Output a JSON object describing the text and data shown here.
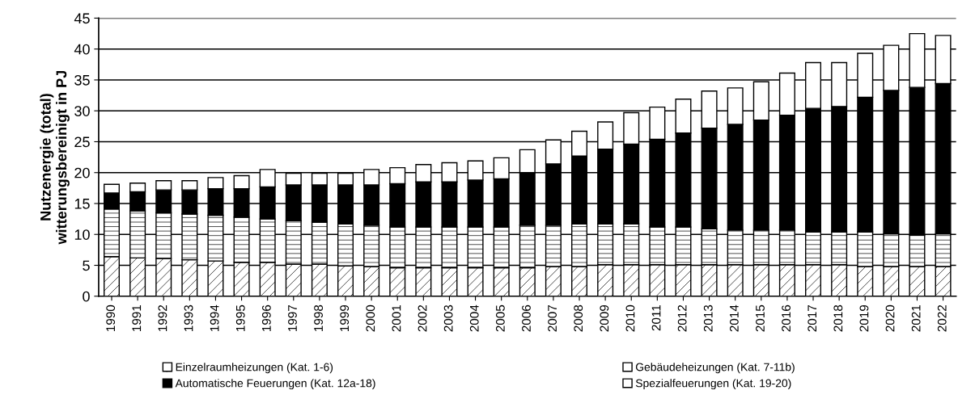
{
  "chart_data": {
    "type": "bar",
    "stacked": true,
    "ylabel": "Nutzenergie (total)\nwitterungsbereinigt in PJ",
    "categories": [
      "1990",
      "1991",
      "1992",
      "1993",
      "1994",
      "1995",
      "1996",
      "1997",
      "1998",
      "1999",
      "2000",
      "2001",
      "2002",
      "2003",
      "2004",
      "2005",
      "2006",
      "2007",
      "2008",
      "2009",
      "2010",
      "2011",
      "2012",
      "2013",
      "2014",
      "2015",
      "2016",
      "2017",
      "2018",
      "2019",
      "2020",
      "2021",
      "2022"
    ],
    "series": [
      {
        "name": "Einzelraumheizungen (Kat. 1-6)",
        "color": "#ffffff",
        "values": [
          6.4,
          6.2,
          6.1,
          5.9,
          5.7,
          5.5,
          5.5,
          5.2,
          5.2,
          4.9,
          4.8,
          4.6,
          4.6,
          4.6,
          4.6,
          4.6,
          4.6,
          4.8,
          4.8,
          5.1,
          5.1,
          5.1,
          5.1,
          5.1,
          5.1,
          5.1,
          5.1,
          5.1,
          5.1,
          4.8,
          4.8,
          4.8,
          4.8
        ]
      },
      {
        "name": "Gebäudeheizungen (Kat. 7-11b)",
        "color": "#ffffff",
        "values": [
          7.7,
          7.6,
          7.4,
          7.4,
          7.4,
          7.3,
          7.0,
          7.0,
          6.8,
          6.8,
          6.7,
          6.6,
          6.6,
          6.6,
          6.6,
          6.6,
          6.9,
          6.7,
          6.9,
          6.6,
          6.6,
          6.1,
          6.1,
          5.8,
          5.6,
          5.6,
          5.6,
          5.3,
          5.3,
          5.6,
          5.3,
          5.1,
          5.3
        ]
      },
      {
        "name": "Automatische Feuerungen (Kat. 12a-18)",
        "color": "#000000",
        "values": [
          2.6,
          3.1,
          3.7,
          3.9,
          4.3,
          4.6,
          5.2,
          5.8,
          6.0,
          6.3,
          6.5,
          7.0,
          7.3,
          7.3,
          7.6,
          7.8,
          8.5,
          9.9,
          11.0,
          12.1,
          12.9,
          14.2,
          15.2,
          16.3,
          17.1,
          17.8,
          18.6,
          20.0,
          20.3,
          21.8,
          23.2,
          23.9,
          24.3
        ]
      },
      {
        "name": "Spezialfeuerungen (Kat. 19-20)",
        "color": "#ffffff",
        "values": [
          1.4,
          1.4,
          1.5,
          1.5,
          1.8,
          2.1,
          2.8,
          1.9,
          1.9,
          1.9,
          2.5,
          2.6,
          2.8,
          3.1,
          3.1,
          3.4,
          3.7,
          3.9,
          4.0,
          4.4,
          5.1,
          5.2,
          5.5,
          6.0,
          5.9,
          6.2,
          6.8,
          7.4,
          7.1,
          7.1,
          7.3,
          8.7,
          7.8
        ]
      }
    ],
    "ylim": [
      0,
      45
    ],
    "yticks": [
      0,
      5,
      10,
      15,
      20,
      25,
      30,
      35,
      40,
      45
    ],
    "grid": "y",
    "legend": "bottom"
  }
}
